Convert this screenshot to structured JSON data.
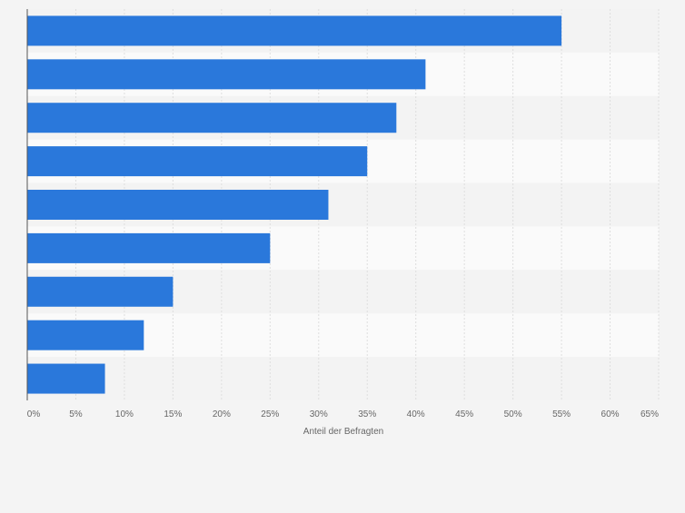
{
  "chart_data": {
    "type": "bar",
    "orientation": "horizontal",
    "categories": [
      "",
      "",
      "",
      "",
      "",
      "",
      "",
      "",
      ""
    ],
    "values": [
      55,
      41,
      38,
      35,
      31,
      25,
      15,
      12,
      8
    ],
    "xlabel": "Anteil der Befragten",
    "ylabel": "",
    "xlim": [
      0,
      65
    ],
    "xticks": [
      "0%",
      "5%",
      "10%",
      "15%",
      "20%",
      "25%",
      "30%",
      "35%",
      "40%",
      "45%",
      "50%",
      "55%",
      "60%",
      "65%"
    ],
    "grid": true,
    "legend": "none"
  },
  "colors": {
    "bar": "#2a78db",
    "background": "#f4f4f4",
    "band_light": "#fafafa",
    "band_dark": "#f3f3f3",
    "grid": "#dedede",
    "axis": "#555555",
    "tick_text": "#666666"
  }
}
